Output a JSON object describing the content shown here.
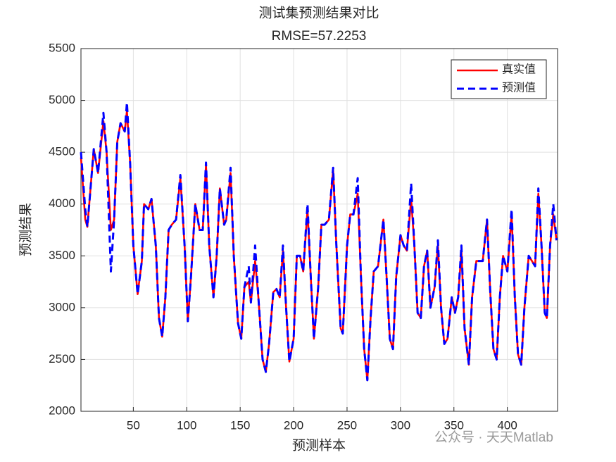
{
  "chart_data": {
    "type": "line",
    "title": "测试集预测结果对比",
    "subtitle": "RMSE=57.2253",
    "x_label": "预测样本",
    "y_label": "预测结果",
    "watermark": "公众号 · 天天Matlab",
    "legend_position": "upper right",
    "grid": true,
    "xlim": [
      1,
      447
    ],
    "ylim": [
      2000,
      5500
    ],
    "xticks": [
      50,
      100,
      150,
      200,
      250,
      300,
      350,
      400
    ],
    "yticks": [
      2000,
      2500,
      3000,
      3500,
      4000,
      4500,
      5000,
      5500
    ],
    "x": [
      1,
      5,
      7,
      13,
      17,
      22,
      25,
      29,
      32,
      35,
      38,
      42,
      44,
      47,
      50,
      54,
      58,
      60,
      64,
      67,
      71,
      74,
      77,
      80,
      83,
      86,
      90,
      94,
      98,
      101,
      104,
      108,
      112,
      115,
      118,
      121,
      125,
      128,
      131,
      135,
      137,
      141,
      144,
      148,
      151,
      154,
      158,
      160,
      164,
      167,
      171,
      174,
      177,
      181,
      184,
      187,
      190,
      193,
      196,
      200,
      203,
      206,
      209,
      213,
      216,
      219,
      223,
      226,
      229,
      233,
      237,
      240,
      244,
      246,
      250,
      253,
      256,
      260,
      263,
      266,
      269,
      272,
      275,
      279,
      284,
      287,
      290,
      293,
      296,
      300,
      303,
      306,
      310,
      313,
      316,
      319,
      322,
      325,
      328,
      332,
      335,
      338,
      341,
      344,
      348,
      351,
      354,
      357,
      360,
      364,
      367,
      371,
      374,
      377,
      381,
      384,
      387,
      390,
      393,
      396,
      400,
      404,
      407,
      410,
      413,
      416,
      420,
      423,
      426,
      429,
      432,
      435,
      437,
      440,
      443,
      446
    ],
    "series": [
      {
        "name": "真实值",
        "color": "#ff0000",
        "dash": false,
        "values": [
          4450,
          3850,
          3780,
          4530,
          4300,
          4800,
          4500,
          3750,
          3850,
          4600,
          4780,
          4700,
          4900,
          4400,
          3600,
          3130,
          3450,
          4000,
          3950,
          4050,
          3600,
          2900,
          2720,
          3100,
          3750,
          3800,
          3850,
          4250,
          3600,
          2870,
          3300,
          4000,
          3750,
          3750,
          4380,
          3600,
          3100,
          3500,
          4150,
          3800,
          3850,
          4300,
          3500,
          2850,
          2700,
          3200,
          3250,
          3050,
          3450,
          3100,
          2500,
          2380,
          2650,
          3150,
          3180,
          3100,
          3550,
          3000,
          2480,
          2700,
          3500,
          3500,
          3350,
          3950,
          3300,
          2700,
          3200,
          3800,
          3800,
          3850,
          4330,
          3600,
          2800,
          2750,
          3600,
          3900,
          3900,
          4100,
          3300,
          2600,
          2300,
          2900,
          3350,
          3400,
          3850,
          3300,
          2700,
          2600,
          3300,
          3700,
          3600,
          3550,
          4050,
          3600,
          2950,
          2900,
          3400,
          3550,
          3000,
          3200,
          3600,
          3000,
          2650,
          2700,
          3100,
          2950,
          3100,
          3550,
          2800,
          2450,
          3100,
          3450,
          3450,
          3450,
          3850,
          3150,
          2600,
          2500,
          3100,
          3500,
          3350,
          3900,
          3100,
          2550,
          2450,
          3000,
          3500,
          3450,
          3400,
          4100,
          3600,
          2950,
          2900,
          3600,
          3900,
          3650
        ]
      },
      {
        "name": "预测值",
        "color": "#0000ff",
        "dash": true,
        "values": [
          4500,
          3950,
          3780,
          4530,
          4300,
          4880,
          4500,
          3350,
          3850,
          4600,
          4780,
          4700,
          4980,
          4400,
          3600,
          3130,
          3450,
          4000,
          3950,
          4050,
          3600,
          2900,
          2720,
          3100,
          3750,
          3800,
          3850,
          4280,
          3600,
          2870,
          3300,
          4000,
          3750,
          3750,
          4400,
          3600,
          3100,
          3500,
          4150,
          3800,
          3850,
          4350,
          3500,
          2850,
          2700,
          3200,
          3400,
          3050,
          3600,
          3100,
          2500,
          2380,
          2650,
          3150,
          3180,
          3100,
          3600,
          3000,
          2480,
          2700,
          3500,
          3500,
          3350,
          4000,
          3300,
          2700,
          3200,
          3800,
          3800,
          3850,
          4350,
          3600,
          2800,
          2750,
          3600,
          3900,
          3900,
          4250,
          3300,
          2600,
          2300,
          2900,
          3350,
          3400,
          3850,
          3300,
          2700,
          2600,
          3300,
          3700,
          3600,
          3550,
          4200,
          3600,
          2950,
          2900,
          3400,
          3550,
          3000,
          3200,
          3650,
          3000,
          2650,
          2700,
          3100,
          2950,
          3100,
          3600,
          2800,
          2450,
          3100,
          3450,
          3450,
          3450,
          3850,
          3150,
          2600,
          2500,
          3100,
          3500,
          3350,
          3950,
          3100,
          2550,
          2450,
          3000,
          3500,
          3450,
          3400,
          4150,
          3600,
          2950,
          2900,
          3600,
          4000,
          3650
        ]
      }
    ]
  }
}
